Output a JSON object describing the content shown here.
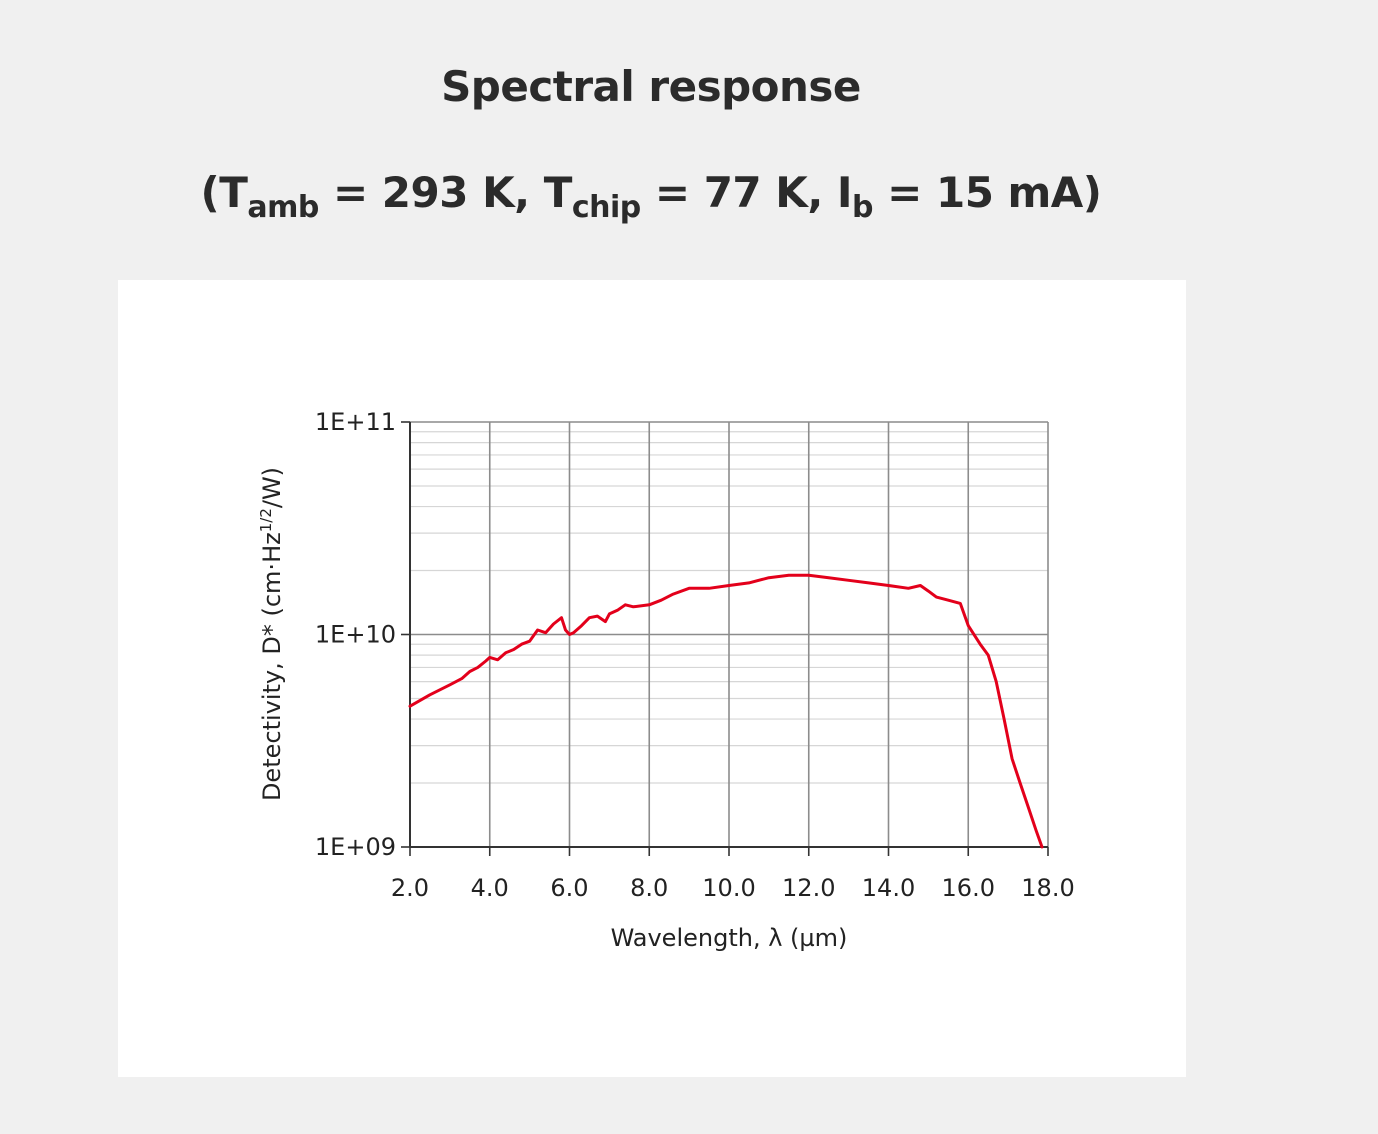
{
  "header": {
    "title": "Spectral response",
    "conditions": {
      "open": "(",
      "t1": "T",
      "t1_sub": "amb",
      "t1_val": " = 293 K, ",
      "t2": "T",
      "t2_sub": "chip",
      "t2_val": " = 77 K, ",
      "t3": "I",
      "t3_sub": "b",
      "t3_val": " = 15 mA)"
    }
  },
  "chart_data": {
    "type": "line",
    "title": "Spectral response",
    "xlabel": "Wavelength, λ (µm)",
    "ylabel_main": "Detectivity, D* (cm·Hz",
    "ylabel_sup": "1/2",
    "ylabel_end": "/W)",
    "xlim": [
      2.0,
      18.0
    ],
    "ylim": [
      1000000000.0,
      100000000000.0
    ],
    "y_scale": "log",
    "grid": true,
    "x_ticks": [
      "2.0",
      "4.0",
      "6.0",
      "8.0",
      "10.0",
      "12.0",
      "14.0",
      "16.0",
      "18.0"
    ],
    "y_ticks": [
      "1E+09",
      "1E+10",
      "1E+11"
    ],
    "series": [
      {
        "color": "#e3001b",
        "x": [
          2.0,
          2.5,
          3.0,
          3.3,
          3.5,
          3.7,
          3.9,
          4.0,
          4.2,
          4.4,
          4.6,
          4.8,
          5.0,
          5.2,
          5.4,
          5.6,
          5.8,
          5.9,
          6.0,
          6.1,
          6.3,
          6.5,
          6.7,
          6.9,
          7.0,
          7.2,
          7.4,
          7.6,
          8.0,
          8.3,
          8.6,
          9.0,
          9.5,
          10.0,
          10.5,
          11.0,
          11.5,
          12.0,
          12.5,
          13.0,
          13.5,
          14.0,
          14.5,
          14.8,
          15.0,
          15.2,
          15.5,
          15.8,
          16.0,
          16.3,
          16.5,
          16.7,
          16.9,
          17.1,
          17.3,
          17.5,
          17.7,
          17.85
        ],
        "y": [
          4600000000.0,
          5200000000.0,
          5800000000.0,
          6200000000.0,
          6700000000.0,
          7000000000.0,
          7500000000.0,
          7800000000.0,
          7600000000.0,
          8200000000.0,
          8500000000.0,
          9000000000.0,
          9300000000.0,
          10500000000.0,
          10200000000.0,
          11200000000.0,
          12000000000.0,
          10500000000.0,
          10000000000.0,
          10200000000.0,
          11000000000.0,
          12000000000.0,
          12200000000.0,
          11500000000.0,
          12500000000.0,
          13000000000.0,
          13800000000.0,
          13500000000.0,
          13800000000.0,
          14500000000.0,
          15500000000.0,
          16500000000.0,
          16500000000.0,
          17000000000.0,
          17500000000.0,
          18500000000.0,
          19000000000.0,
          19000000000.0,
          18500000000.0,
          18000000000.0,
          17500000000.0,
          17000000000.0,
          16500000000.0,
          17000000000.0,
          16000000000.0,
          15000000000.0,
          14500000000.0,
          14000000000.0,
          11000000000.0,
          9000000000.0,
          8000000000.0,
          6000000000.0,
          4000000000.0,
          2600000000.0,
          2000000000.0,
          1550000000.0,
          1200000000.0,
          1000000000.0
        ]
      }
    ]
  }
}
